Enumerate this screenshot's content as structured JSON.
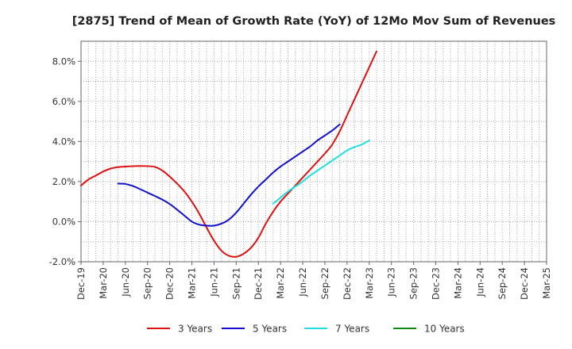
{
  "chart_data": {
    "type": "line",
    "title": "[2875]  Trend of Mean of Growth Rate (YoY) of 12Mo Mov Sum of Revenues",
    "xlabel": "",
    "ylabel": "",
    "x_labels": [
      "Dec-19",
      "Mar-20",
      "Jun-20",
      "Sep-20",
      "Dec-20",
      "Mar-21",
      "Jun-21",
      "Sep-21",
      "Dec-21",
      "Mar-22",
      "Jun-22",
      "Sep-22",
      "Dec-22",
      "Mar-23",
      "Jun-23",
      "Sep-23",
      "Dec-23",
      "Mar-24",
      "Jun-24",
      "Sep-24",
      "Dec-24",
      "Mar-25"
    ],
    "ylim": [
      -2.0,
      9.0
    ],
    "yticks": [
      -2.0,
      0.0,
      2.0,
      4.0,
      6.0,
      8.0
    ],
    "ytick_labels": [
      "-2.0%",
      "0.0%",
      "2.0%",
      "4.0%",
      "6.0%",
      "8.0%"
    ],
    "grid": true,
    "series": [
      {
        "name": "3 Years",
        "color": "#dd1111",
        "start_index": 0,
        "values": [
          1.8,
          2.1,
          2.3,
          2.5,
          2.65,
          2.72,
          2.75,
          2.77,
          2.78,
          2.77,
          2.73,
          2.55,
          2.25,
          1.9,
          1.5,
          1.0,
          0.4,
          -0.3,
          -0.95,
          -1.45,
          -1.7,
          -1.75,
          -1.6,
          -1.3,
          -0.8,
          -0.1,
          0.5,
          1.0,
          1.4,
          1.8,
          2.2,
          2.6,
          3.0,
          3.4,
          3.85,
          4.5,
          5.3,
          6.1,
          6.9,
          7.7,
          8.5
        ]
      },
      {
        "name": "5 Years",
        "color": "#1111cc",
        "start_index": 5,
        "values": [
          1.9,
          1.88,
          1.78,
          1.62,
          1.45,
          1.28,
          1.1,
          0.88,
          0.6,
          0.3,
          0.0,
          -0.15,
          -0.2,
          -0.2,
          -0.1,
          0.1,
          0.45,
          0.9,
          1.35,
          1.75,
          2.1,
          2.45,
          2.75,
          3.0,
          3.25,
          3.5,
          3.75,
          4.05,
          4.3,
          4.55,
          4.85
        ]
      },
      {
        "name": "7 Years",
        "color": "#22dddd",
        "start_index": 26,
        "values": [
          0.9,
          1.2,
          1.5,
          1.75,
          2.0,
          2.3,
          2.55,
          2.8,
          3.05,
          3.3,
          3.55,
          3.72,
          3.85,
          4.05
        ]
      },
      {
        "name": "10 Years",
        "color": "#118811",
        "start_index": 0,
        "values": []
      }
    ],
    "legend_position": "bottom"
  }
}
